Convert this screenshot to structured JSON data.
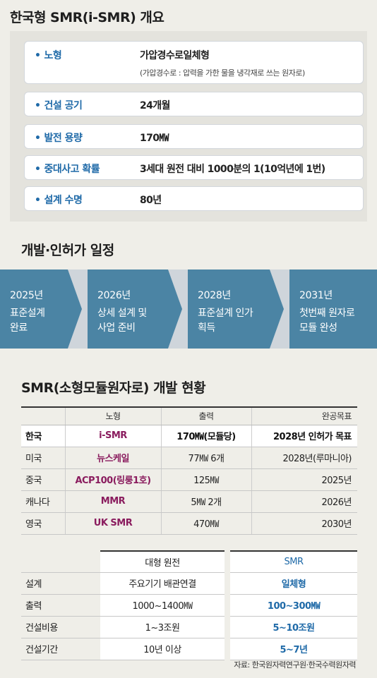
{
  "overview": {
    "title": "한국형 SMR(i-SMR) 개요",
    "bullet": "•",
    "rows": [
      {
        "label": "노형",
        "value": "가압경수로일체형",
        "note": "(가압경수로 : 압력을 가한 물을 냉각재로 쓰는 원자로)"
      },
      {
        "label": "건설 공기",
        "value": "24개월"
      },
      {
        "label": "발전 용량",
        "value": "170㎿"
      },
      {
        "label": "중대사고 확률",
        "value": "3세대 원전 대비 1000분의 1(10억년에 1번)"
      },
      {
        "label": "설계 수명",
        "value": "80년"
      }
    ]
  },
  "schedule": {
    "title": "개발·인허가 일정",
    "steps": [
      {
        "year": "2025년",
        "text": "표준설계\n완료"
      },
      {
        "year": "2026년",
        "text": "상세 설계 및\n사업 준비"
      },
      {
        "year": "2028년",
        "text": "표준설계 인가\n획득"
      },
      {
        "year": "2031년",
        "text": "첫번째 원자로\n모듈 완성"
      }
    ],
    "colors": {
      "step": "#4b84a4",
      "band": "#cfd5db"
    }
  },
  "smr_status": {
    "title": "SMR(소형모듈원자로) 개발 현황",
    "headers": [
      "",
      "노형",
      "출력",
      "완공목표"
    ],
    "rows": [
      {
        "country": "한국",
        "type": "i-SMR",
        "output": "170㎿(모듈당)",
        "target": "2028년 인허가 목표"
      },
      {
        "country": "미국",
        "type": "뉴스케일",
        "output": "77㎿ 6개",
        "target": "2028년(루마니아)"
      },
      {
        "country": "중국",
        "type": "ACP100(링룽1호)",
        "output": "125㎿",
        "target": "2025년"
      },
      {
        "country": "캐나다",
        "type": "MMR",
        "output": "5㎿ 2개",
        "target": "2026년"
      },
      {
        "country": "영국",
        "type": "UK SMR",
        "output": "470㎿",
        "target": "2030년"
      }
    ]
  },
  "comparison": {
    "headers": {
      "large": "대형 원전",
      "smr": "SMR"
    },
    "rows": [
      {
        "label": "설계",
        "large": "주요기기 배관연결",
        "smr": "일체형"
      },
      {
        "label": "출력",
        "large": "1000~1400㎿",
        "smr": "100~300㎿"
      },
      {
        "label": "건설비용",
        "large": "1~3조원",
        "smr": "5~10조원"
      },
      {
        "label": "건설기간",
        "large": "10년 이상",
        "smr": "5~7년"
      }
    ]
  },
  "source": "자료: 한국원자력연구원·한국수력원자력"
}
